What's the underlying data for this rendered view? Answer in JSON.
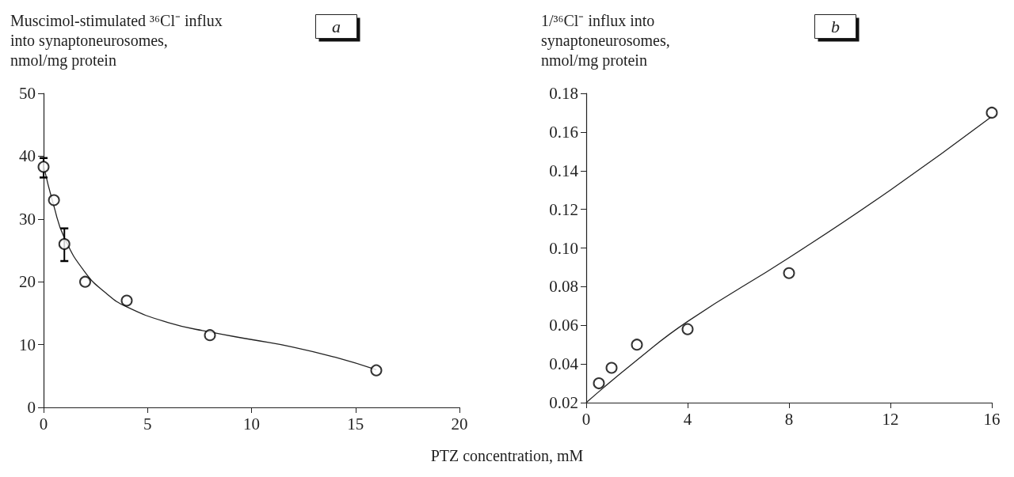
{
  "chart_data": [
    {
      "type": "scatter",
      "ylabel": "Muscimol-stimulated ³⁶Cl⁻ influx\ninto synaptoneurosomes,\nnmol/mg protein",
      "xlabel": "PTZ concentration, mM",
      "annotations": [
        "a"
      ],
      "xlim": [
        0,
        20
      ],
      "xticks": [
        0,
        5,
        10,
        15,
        20
      ],
      "ylim": [
        0,
        50
      ],
      "yticks": [
        0,
        10,
        20,
        30,
        40,
        50
      ],
      "marker": "circle",
      "series": [
        {
          "color": "#000000",
          "x": [
            0,
            0.5,
            1,
            2,
            4,
            8,
            16
          ],
          "values": [
            38.3,
            33,
            26,
            20,
            17,
            11.5,
            5.9
          ],
          "errors": [
            [
              36.6,
              39.7
            ],
            null,
            [
              23.3,
              28.5
            ],
            null,
            null,
            null,
            null
          ]
        },
        {
          "type": "line",
          "color": "#222222",
          "marker": "none",
          "x": [
            0,
            0.5,
            1,
            2,
            3,
            4,
            6,
            8,
            10,
            12,
            14,
            16
          ],
          "values": [
            38.5,
            32,
            27,
            21.5,
            18.2,
            16,
            13.5,
            12,
            10.8,
            9.6,
            8,
            6
          ]
        }
      ]
    },
    {
      "type": "scatter",
      "ylabel": "1/³⁶Cl⁻ influx into\nsynaptoneurosomes,\nnmol/mg protein",
      "annotations": [
        "b"
      ],
      "xlim": [
        0,
        16
      ],
      "xticks": [
        0,
        4,
        8,
        12,
        16
      ],
      "ylim": [
        0.02,
        0.18
      ],
      "yticks": [
        0.02,
        0.04,
        0.06,
        0.08,
        {
          "value": 0.1,
          "label": "0.10"
        },
        0.12,
        0.14,
        0.16,
        0.18
      ],
      "marker": "circle",
      "series": [
        {
          "color": "#000000",
          "x": [
            0.5,
            1,
            2,
            4,
            8,
            16
          ],
          "values": [
            0.03,
            0.038,
            0.05,
            0.058,
            0.087,
            0.17
          ]
        },
        {
          "type": "line",
          "color": "#222222",
          "marker": "none",
          "x": [
            0,
            2,
            4,
            8,
            12,
            16
          ],
          "values": [
            0.02,
            0.042,
            0.062,
            0.095,
            0.13,
            0.168
          ]
        }
      ]
    }
  ]
}
